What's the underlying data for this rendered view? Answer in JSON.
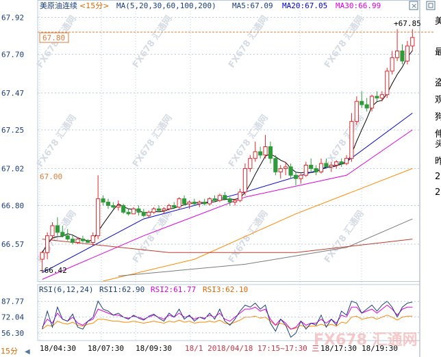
{
  "header": {
    "title": "美原油连续",
    "period": "<15分>",
    "ma_label": "MA(5,20,30,60,100,200)",
    "ma5": "MA5:67.09",
    "ma20": "MA20:67.05",
    "ma30": "MA30:66.99"
  },
  "rsi_header": {
    "label": "RSI(6,12,24)",
    "rsi1": "RSI1:62.90",
    "rsi2": "RSI2:61.77",
    "rsi3": "RSI3:62.10"
  },
  "footer": {
    "period_tag": "15分",
    "overlay_text": "18/1 2018/04/18 17:15~17:30 三",
    "watermark_brand": "FX678 汇通网"
  },
  "right_panel_chars": [
    "美",
    "最",
    "盗",
    "观",
    "狗",
    "伸",
    "头",
    "昨",
    "2",
    "2"
  ],
  "annotations": {
    "high": "+67.85",
    "low": "~66.42",
    "marker_price": "67.80",
    "ref_price": "67.00",
    "rsi_top": "87.77",
    "rsi_mid": "72.04",
    "rsi_low": "56.30"
  },
  "colors": {
    "up": "#e0262a",
    "down": "#2e9b3a",
    "ma5": "#000000",
    "ma20": "#0000cc",
    "ma30": "#dd00dd",
    "ma60": "#ff8800",
    "ma100": "#7a7a7a",
    "ma200": "#c0392b",
    "grid": "#b8c8dc",
    "axis_text": "#1a3d78"
  },
  "chart_data": {
    "type": "candlestick",
    "y_ticks": [
      "67.92",
      "67.70",
      "67.47",
      "67.25",
      "67.02",
      "66.80",
      "66.57"
    ],
    "x_ticks": [
      "18/04:30",
      "18/07:30",
      "18/09:30",
      "18/17:30",
      "18/19:30"
    ],
    "ylim": [
      66.35,
      67.95
    ],
    "candles": [
      {
        "o": 66.48,
        "h": 66.53,
        "l": 66.4,
        "c": 66.52
      },
      {
        "o": 66.52,
        "h": 66.64,
        "l": 66.48,
        "c": 66.62
      },
      {
        "o": 66.62,
        "h": 66.7,
        "l": 66.6,
        "c": 66.68
      },
      {
        "o": 66.68,
        "h": 66.73,
        "l": 66.62,
        "c": 66.64
      },
      {
        "o": 66.64,
        "h": 66.68,
        "l": 66.61,
        "c": 66.62
      },
      {
        "o": 66.62,
        "h": 66.66,
        "l": 66.59,
        "c": 66.6
      },
      {
        "o": 66.6,
        "h": 66.62,
        "l": 66.57,
        "c": 66.58
      },
      {
        "o": 66.58,
        "h": 66.61,
        "l": 66.57,
        "c": 66.6
      },
      {
        "o": 66.6,
        "h": 66.62,
        "l": 66.58,
        "c": 66.59
      },
      {
        "o": 66.59,
        "h": 66.6,
        "l": 66.58,
        "c": 66.58
      },
      {
        "o": 66.58,
        "h": 66.64,
        "l": 66.56,
        "c": 66.62
      },
      {
        "o": 66.62,
        "h": 66.98,
        "l": 66.6,
        "c": 66.84
      },
      {
        "o": 66.84,
        "h": 66.86,
        "l": 66.8,
        "c": 66.82
      },
      {
        "o": 66.82,
        "h": 66.84,
        "l": 66.78,
        "c": 66.8
      },
      {
        "o": 66.8,
        "h": 66.82,
        "l": 66.78,
        "c": 66.79
      },
      {
        "o": 66.79,
        "h": 66.83,
        "l": 66.77,
        "c": 66.8
      },
      {
        "o": 66.8,
        "h": 66.81,
        "l": 66.75,
        "c": 66.76
      },
      {
        "o": 66.76,
        "h": 66.78,
        "l": 66.74,
        "c": 66.75
      },
      {
        "o": 66.75,
        "h": 66.79,
        "l": 66.75,
        "c": 66.78
      },
      {
        "o": 66.78,
        "h": 66.8,
        "l": 66.74,
        "c": 66.76
      },
      {
        "o": 66.76,
        "h": 66.78,
        "l": 66.73,
        "c": 66.74
      },
      {
        "o": 66.74,
        "h": 66.77,
        "l": 66.73,
        "c": 66.76
      },
      {
        "o": 66.76,
        "h": 66.79,
        "l": 66.75,
        "c": 66.78
      },
      {
        "o": 66.78,
        "h": 66.8,
        "l": 66.76,
        "c": 66.77
      },
      {
        "o": 66.77,
        "h": 66.79,
        "l": 66.75,
        "c": 66.78
      },
      {
        "o": 66.78,
        "h": 66.81,
        "l": 66.77,
        "c": 66.8
      },
      {
        "o": 66.8,
        "h": 66.82,
        "l": 66.78,
        "c": 66.79
      },
      {
        "o": 66.79,
        "h": 66.85,
        "l": 66.78,
        "c": 66.84
      },
      {
        "o": 66.84,
        "h": 66.86,
        "l": 66.8,
        "c": 66.81
      },
      {
        "o": 66.81,
        "h": 66.83,
        "l": 66.78,
        "c": 66.82
      },
      {
        "o": 66.82,
        "h": 66.84,
        "l": 66.8,
        "c": 66.81
      },
      {
        "o": 66.81,
        "h": 66.83,
        "l": 66.79,
        "c": 66.82
      },
      {
        "o": 66.82,
        "h": 66.84,
        "l": 66.8,
        "c": 66.81
      },
      {
        "o": 66.81,
        "h": 66.85,
        "l": 66.8,
        "c": 66.84
      },
      {
        "o": 66.84,
        "h": 66.86,
        "l": 66.82,
        "c": 66.83
      },
      {
        "o": 66.83,
        "h": 66.87,
        "l": 66.82,
        "c": 66.86
      },
      {
        "o": 66.86,
        "h": 66.88,
        "l": 66.83,
        "c": 66.84
      },
      {
        "o": 66.84,
        "h": 66.85,
        "l": 66.8,
        "c": 66.82
      },
      {
        "o": 66.82,
        "h": 66.84,
        "l": 66.8,
        "c": 66.83
      },
      {
        "o": 66.83,
        "h": 66.9,
        "l": 66.82,
        "c": 66.88
      },
      {
        "o": 66.88,
        "h": 67.05,
        "l": 66.86,
        "c": 67.02
      },
      {
        "o": 67.02,
        "h": 67.1,
        "l": 67.0,
        "c": 67.08
      },
      {
        "o": 67.08,
        "h": 67.18,
        "l": 67.06,
        "c": 67.12
      },
      {
        "o": 67.12,
        "h": 67.15,
        "l": 67.08,
        "c": 67.1
      },
      {
        "o": 67.1,
        "h": 67.22,
        "l": 67.08,
        "c": 67.15
      },
      {
        "o": 67.15,
        "h": 67.18,
        "l": 67.05,
        "c": 67.08
      },
      {
        "o": 67.08,
        "h": 67.1,
        "l": 66.98,
        "c": 67.0
      },
      {
        "o": 67.0,
        "h": 67.04,
        "l": 66.96,
        "c": 67.02
      },
      {
        "o": 67.02,
        "h": 67.06,
        "l": 66.98,
        "c": 67.03
      },
      {
        "o": 67.03,
        "h": 67.05,
        "l": 66.96,
        "c": 66.98
      },
      {
        "o": 66.98,
        "h": 67.0,
        "l": 66.92,
        "c": 66.96
      },
      {
        "o": 66.96,
        "h": 66.99,
        "l": 66.93,
        "c": 66.98
      },
      {
        "o": 66.98,
        "h": 67.06,
        "l": 66.97,
        "c": 67.04
      },
      {
        "o": 67.04,
        "h": 67.08,
        "l": 67.0,
        "c": 67.02
      },
      {
        "o": 67.02,
        "h": 67.04,
        "l": 66.98,
        "c": 67.0
      },
      {
        "o": 67.0,
        "h": 67.08,
        "l": 66.99,
        "c": 67.05
      },
      {
        "o": 67.05,
        "h": 67.08,
        "l": 67.02,
        "c": 67.03
      },
      {
        "o": 67.03,
        "h": 67.06,
        "l": 67.0,
        "c": 67.04
      },
      {
        "o": 67.04,
        "h": 67.07,
        "l": 67.02,
        "c": 67.06
      },
      {
        "o": 67.06,
        "h": 67.08,
        "l": 67.03,
        "c": 67.05
      },
      {
        "o": 67.05,
        "h": 67.1,
        "l": 67.04,
        "c": 67.08
      },
      {
        "o": 67.08,
        "h": 67.35,
        "l": 67.06,
        "c": 67.3
      },
      {
        "o": 67.3,
        "h": 67.45,
        "l": 67.28,
        "c": 67.42
      },
      {
        "o": 67.42,
        "h": 67.48,
        "l": 67.38,
        "c": 67.4
      },
      {
        "o": 67.4,
        "h": 67.44,
        "l": 67.36,
        "c": 67.38
      },
      {
        "o": 67.38,
        "h": 67.46,
        "l": 67.36,
        "c": 67.45
      },
      {
        "o": 67.45,
        "h": 67.48,
        "l": 67.42,
        "c": 67.44
      },
      {
        "o": 67.44,
        "h": 67.48,
        "l": 67.42,
        "c": 67.46
      },
      {
        "o": 67.46,
        "h": 67.62,
        "l": 67.44,
        "c": 67.6
      },
      {
        "o": 67.6,
        "h": 67.72,
        "l": 67.58,
        "c": 67.68
      },
      {
        "o": 67.68,
        "h": 67.85,
        "l": 67.66,
        "c": 67.72
      },
      {
        "o": 67.72,
        "h": 67.76,
        "l": 67.64,
        "c": 67.66
      },
      {
        "o": 67.66,
        "h": 67.78,
        "l": 67.64,
        "c": 67.75
      },
      {
        "o": 67.75,
        "h": 67.85,
        "l": 67.72,
        "c": 67.8
      }
    ],
    "ma_series": [
      {
        "name": "MA5",
        "start": 66.44,
        "end": 67.73,
        "shape": "follow"
      },
      {
        "name": "MA20",
        "points": [
          [
            0,
            66.4
          ],
          [
            20,
            66.72
          ],
          [
            40,
            66.88
          ],
          [
            60,
            67.06
          ],
          [
            73,
            67.35
          ]
        ]
      },
      {
        "name": "MA30",
        "points": [
          [
            0,
            66.36
          ],
          [
            20,
            66.62
          ],
          [
            40,
            66.85
          ],
          [
            60,
            66.98
          ],
          [
            73,
            67.25
          ]
        ]
      },
      {
        "name": "MA60",
        "points": [
          [
            12,
            66.35
          ],
          [
            30,
            66.48
          ],
          [
            50,
            66.75
          ],
          [
            73,
            67.02
          ]
        ]
      },
      {
        "name": "MA100",
        "points": [
          [
            15,
            66.38
          ],
          [
            40,
            66.45
          ],
          [
            60,
            66.55
          ],
          [
            73,
            66.72
          ]
        ]
      },
      {
        "name": "MA200",
        "points": [
          [
            0,
            66.6
          ],
          [
            25,
            66.52
          ],
          [
            50,
            66.52
          ],
          [
            73,
            66.6
          ]
        ]
      }
    ],
    "rsi": {
      "ylim": [
        50,
        95
      ],
      "rsi1": [
        60,
        78,
        62,
        82,
        70,
        68,
        75,
        62,
        60,
        68,
        72,
        88,
        80,
        78,
        74,
        76,
        72,
        70,
        74,
        71,
        69,
        73,
        75,
        71,
        68,
        76,
        72,
        80,
        70,
        74,
        68,
        72,
        70,
        76,
        70,
        80,
        68,
        64,
        70,
        78,
        84,
        82,
        86,
        80,
        84,
        66,
        58,
        70,
        64,
        52,
        56,
        68,
        60,
        66,
        64,
        74,
        62,
        70,
        64,
        78,
        74,
        88,
        86,
        76,
        80,
        84,
        78,
        84,
        88,
        82,
        72,
        82,
        86,
        87
      ],
      "rsi2": [
        62,
        70,
        66,
        76,
        70,
        68,
        72,
        66,
        64,
        68,
        70,
        80,
        78,
        76,
        74,
        74,
        72,
        71,
        73,
        72,
        70,
        72,
        74,
        72,
        70,
        74,
        72,
        76,
        72,
        73,
        70,
        72,
        71,
        74,
        72,
        76,
        70,
        68,
        72,
        76,
        80,
        80,
        82,
        78,
        80,
        70,
        64,
        70,
        66,
        60,
        62,
        68,
        64,
        66,
        66,
        70,
        66,
        70,
        66,
        74,
        72,
        82,
        82,
        76,
        78,
        80,
        76,
        80,
        84,
        80,
        74,
        80,
        82,
        82
      ],
      "rsi3": [
        60,
        64,
        63,
        68,
        66,
        65,
        67,
        64,
        63,
        65,
        66,
        70,
        70,
        69,
        68,
        68,
        67,
        67,
        68,
        67,
        66,
        67,
        68,
        67,
        66,
        68,
        67,
        69,
        67,
        68,
        66,
        67,
        67,
        68,
        67,
        69,
        66,
        65,
        67,
        69,
        72,
        72,
        73,
        71,
        72,
        68,
        64,
        66,
        64,
        60,
        61,
        64,
        62,
        63,
        63,
        65,
        63,
        65,
        63,
        67,
        66,
        72,
        73,
        70,
        71,
        72,
        70,
        72,
        74,
        72,
        69,
        72,
        73,
        73
      ]
    }
  }
}
